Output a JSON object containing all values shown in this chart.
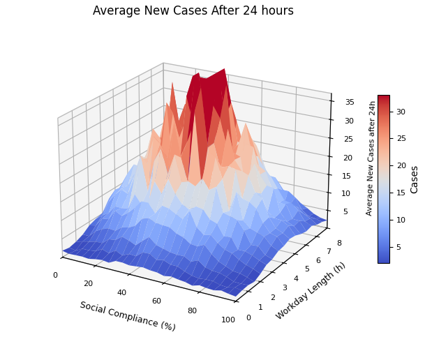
{
  "title": "Average New Cases After 24 hours",
  "xlabel": "Social Compliance (%)",
  "ylabel": "Workday Length (h)",
  "zlabel": "Average New Cases after 24h",
  "colorbar_label": "Cases",
  "social_compliance_range": [
    0,
    100
  ],
  "social_compliance_steps": 26,
  "workday_range": [
    0,
    8
  ],
  "workday_steps": 17,
  "z_tick_values": [
    5,
    10,
    15,
    20,
    25,
    30,
    35
  ],
  "colorbar_ticks": [
    5,
    10,
    15,
    20,
    25,
    30
  ],
  "peak_compliance": 45,
  "peak_workday": 5,
  "peak_value": 35,
  "base_value": 1.5,
  "noise_seed": 7,
  "colormap": "coolwarm",
  "figsize": [
    6.09,
    4.83
  ],
  "dpi": 100,
  "elev": 22,
  "azim": -60,
  "vmin": 2,
  "vmax": 33
}
